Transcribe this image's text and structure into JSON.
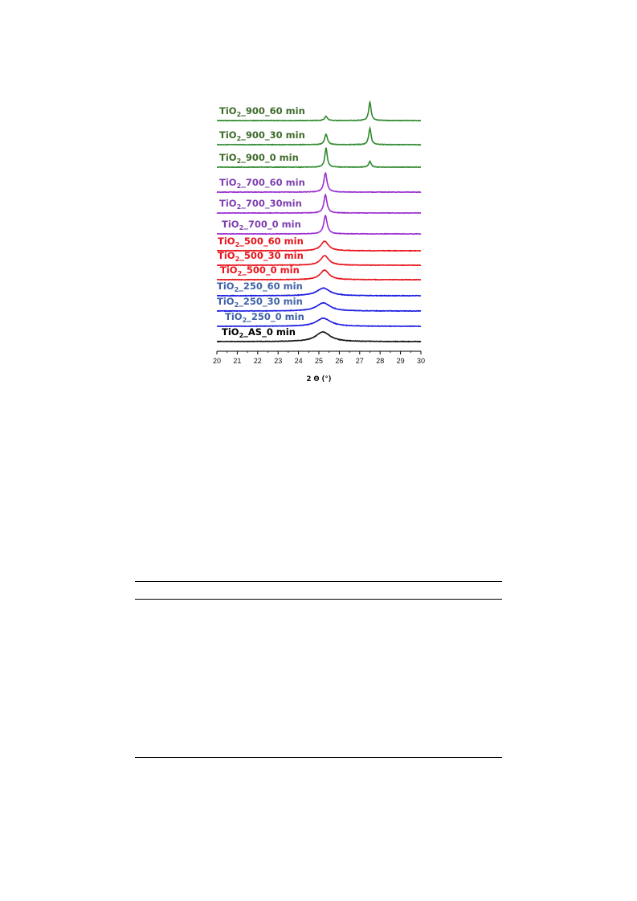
{
  "chart_data": {
    "type": "line",
    "title": "",
    "xlabel": "2 Θ (°)",
    "ylabel": "",
    "xlim": [
      20,
      30
    ],
    "xticks": [
      "20",
      "21",
      "22",
      "23",
      "24",
      "25",
      "26",
      "27",
      "28",
      "29",
      "30"
    ],
    "y_axis": "stacked offset traces, no y axis shown",
    "grid": false,
    "legend": "inline labels above each trace",
    "series": [
      {
        "name": "TiO2_900_60 min",
        "label_main": "TiO",
        "label_sub": "2",
        "label_rest": "_900_60 min",
        "color": "#2e8b2e",
        "label_color": "#3f6b2a",
        "peaks": [
          {
            "x": 25.35,
            "height": 0.22,
            "width": 0.08
          },
          {
            "x": 27.5,
            "height": 0.95,
            "width": 0.07
          }
        ]
      },
      {
        "name": "TiO2_900_30 min",
        "label_main": "TiO",
        "label_sub": "2",
        "label_rest": "_900_30 min",
        "color": "#2e8b2e",
        "label_color": "#3f6b2a",
        "peaks": [
          {
            "x": 25.35,
            "height": 0.55,
            "width": 0.08
          },
          {
            "x": 27.5,
            "height": 0.85,
            "width": 0.07
          }
        ]
      },
      {
        "name": "TiO2_900_0 min",
        "label_main": "TiO",
        "label_sub": "2",
        "label_rest": "_900_0 min",
        "color": "#2e8b2e",
        "label_color": "#3f6b2a",
        "peaks": [
          {
            "x": 25.35,
            "height": 1.0,
            "width": 0.07
          },
          {
            "x": 27.5,
            "height": 0.3,
            "width": 0.07
          }
        ]
      },
      {
        "name": "TiO2_700_60 min",
        "label_main": "TiO",
        "label_sub": "2",
        "label_rest": "_700_60 min",
        "color": "#9b30d0",
        "label_color": "#7e3fb0",
        "peaks": [
          {
            "x": 25.32,
            "height": 1.0,
            "width": 0.09
          }
        ]
      },
      {
        "name": "TiO2_700_30min",
        "label_main": "TiO",
        "label_sub": "2",
        "label_rest": "_700_30min",
        "color": "#9b30d0",
        "label_color": "#7e3fb0",
        "peaks": [
          {
            "x": 25.32,
            "height": 0.95,
            "width": 0.09
          }
        ]
      },
      {
        "name": "TiO2_700_0 min",
        "label_main": "TiO",
        "label_sub": "2",
        "label_rest": "_700_0 min",
        "color": "#9b30d0",
        "label_color": "#7e3fb0",
        "peaks": [
          {
            "x": 25.32,
            "height": 0.95,
            "width": 0.1
          }
        ]
      },
      {
        "name": "TiO2_500_60 min",
        "label_main": "TiO",
        "label_sub": "2",
        "label_rest": "_500_60 min",
        "color": "#e8141c",
        "label_color": "#e8141c",
        "peaks": [
          {
            "x": 25.28,
            "height": 0.5,
            "width": 0.22
          }
        ]
      },
      {
        "name": "TiO2_500_30 min",
        "label_main": "TiO",
        "label_sub": "2",
        "label_rest": "_500_30 min",
        "color": "#e8141c",
        "label_color": "#e8141c",
        "peaks": [
          {
            "x": 25.28,
            "height": 0.5,
            "width": 0.24
          }
        ]
      },
      {
        "name": "TiO2_500_0 min",
        "label_main": "TiO",
        "label_sub": "2",
        "label_rest": "_500_0 min",
        "color": "#e8141c",
        "label_color": "#e8141c",
        "peaks": [
          {
            "x": 25.28,
            "height": 0.5,
            "width": 0.26
          }
        ]
      },
      {
        "name": "TiO2_250_60 min",
        "label_main": "TiO",
        "label_sub": "2",
        "label_rest": "_250_60 min",
        "color": "#1c1ce0",
        "label_color": "#3f62a8",
        "peaks": [
          {
            "x": 25.22,
            "height": 0.4,
            "width": 0.38
          }
        ]
      },
      {
        "name": "TiO2_250_30 min",
        "label_main": "TiO",
        "label_sub": "2",
        "label_rest": "_250_30 min",
        "color": "#1c1ce0",
        "label_color": "#3f62a8",
        "peaks": [
          {
            "x": 25.22,
            "height": 0.42,
            "width": 0.4
          }
        ]
      },
      {
        "name": "TiO2_250_0 min",
        "label_main": "TiO",
        "label_sub": "2",
        "label_rest": "_250_0 min",
        "color": "#1c1ce0",
        "label_color": "#3f62a8",
        "peaks": [
          {
            "x": 25.22,
            "height": 0.42,
            "width": 0.42
          }
        ]
      },
      {
        "name": "TiO2_AS_0 min",
        "label_main": "TiO",
        "label_sub": "2",
        "label_rest": "_AS_0 min",
        "color": "#111111",
        "label_color": "#000000",
        "peaks": [
          {
            "x": 25.2,
            "height": 0.5,
            "width": 0.42
          }
        ]
      }
    ]
  }
}
